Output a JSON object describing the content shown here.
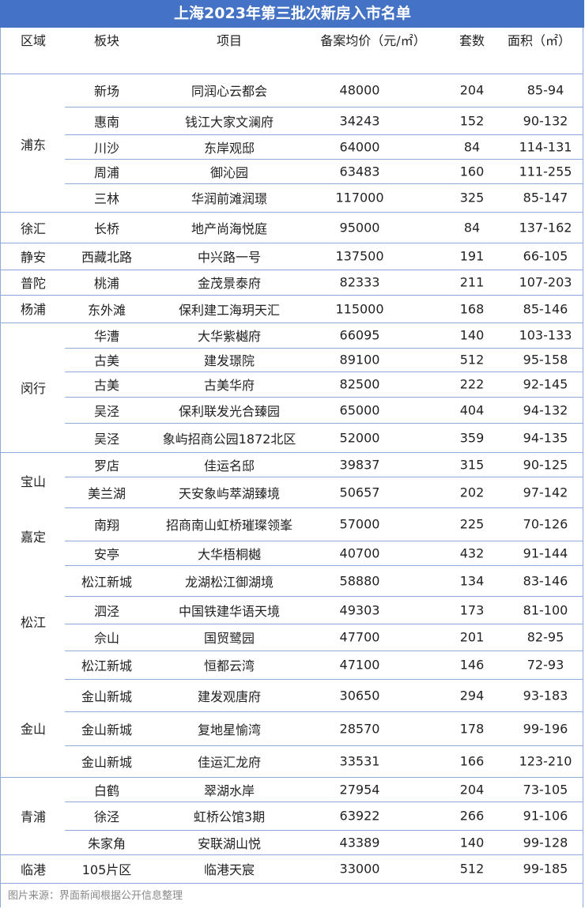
{
  "title": "上海2023年第三批次新房入市名单",
  "headers": [
    "区域",
    "板块",
    "项目",
    "备案均价（元/㎡）",
    "套数",
    "面积（㎡）"
  ],
  "regions": [
    "浦东",
    "徐汇",
    "静安",
    "普陀",
    "杨浦",
    "闵行",
    "宝山",
    "嘉定",
    "松江",
    "金山",
    "青浦",
    "临港"
  ],
  "rows": [
    [
      "新场",
      "同润心云都会",
      "48000",
      "204",
      "85-94"
    ],
    [
      "惠南",
      "钱江大家文澜府",
      "34243",
      "152",
      "90-132"
    ],
    [
      "川沙",
      "东岸观邸",
      "64000",
      "84",
      "114-131"
    ],
    [
      "周浦",
      "御沁园",
      "63483",
      "160",
      "111-255"
    ],
    [
      "三林",
      "华润前滩润璟",
      "117000",
      "325",
      "85-147"
    ],
    [
      "长桥",
      "地产尚海悦庭",
      "95000",
      "84",
      "137-162"
    ],
    [
      "西藏北路",
      "中兴路一号",
      "137500",
      "191",
      "66-105"
    ],
    [
      "桃浦",
      "金茂景泰府",
      "82333",
      "211",
      "107-203"
    ],
    [
      "东外滩",
      "保利建工海玥天汇",
      "115000",
      "168",
      "85-146"
    ],
    [
      "华漕",
      "大华紫樾府",
      "66095",
      "140",
      "103-133"
    ],
    [
      "古美",
      "建发璟院",
      "89100",
      "512",
      "95-158"
    ],
    [
      "古美",
      "古美华府",
      "82500",
      "222",
      "92-145"
    ],
    [
      "吴泾",
      "保利联发光合臻园",
      "65000",
      "404",
      "94-132"
    ],
    [
      "吴泾",
      "象屿招商公园1872北区",
      "52000",
      "359",
      "94-135"
    ],
    [
      "罗店",
      "佳运名邸",
      "39837",
      "315",
      "90-125"
    ],
    [
      "美兰湖",
      "天安象屿萃湖臻境",
      "50657",
      "202",
      "97-142"
    ],
    [
      "南翔",
      "招商南山虹桥璀璨领峯",
      "57000",
      "225",
      "70-126"
    ],
    [
      "安亭",
      "大华梧桐樾",
      "40700",
      "432",
      "91-144"
    ],
    [
      "松江新城",
      "龙湖松江御湖境",
      "58880",
      "134",
      "83-146"
    ],
    [
      "泗泾",
      "中国铁建华语天境",
      "49303",
      "173",
      "81-100"
    ],
    [
      "佘山",
      "国贸鹭园",
      "47700",
      "201",
      "82-95"
    ],
    [
      "松江新城",
      "恒都云湾",
      "47100",
      "146",
      "72-93"
    ],
    [
      "金山新城",
      "建发观唐府",
      "30650",
      "294",
      "93-183"
    ],
    [
      "金山新城",
      "复地星愉湾",
      "28570",
      "178",
      "99-196"
    ],
    [
      "金山新城",
      "佳运汇龙府",
      "33531",
      "166",
      "123-210"
    ],
    [
      "白鹤",
      "翠湖水岸",
      "27954",
      "204",
      "73-105"
    ],
    [
      "徐泾",
      "虹桥公馆3期",
      "63922",
      "266",
      "91-106"
    ],
    [
      "朱家角",
      "安联湖山悦",
      "43389",
      "140",
      "99-128"
    ],
    [
      "105片区",
      "临港天宸",
      "33000",
      "512",
      "99-185"
    ]
  ],
  "footer": "图片来源：界面新闻根据公开信息整理",
  "colors": {
    "title_bg": "#4472c4",
    "border": "#8eaadb"
  }
}
